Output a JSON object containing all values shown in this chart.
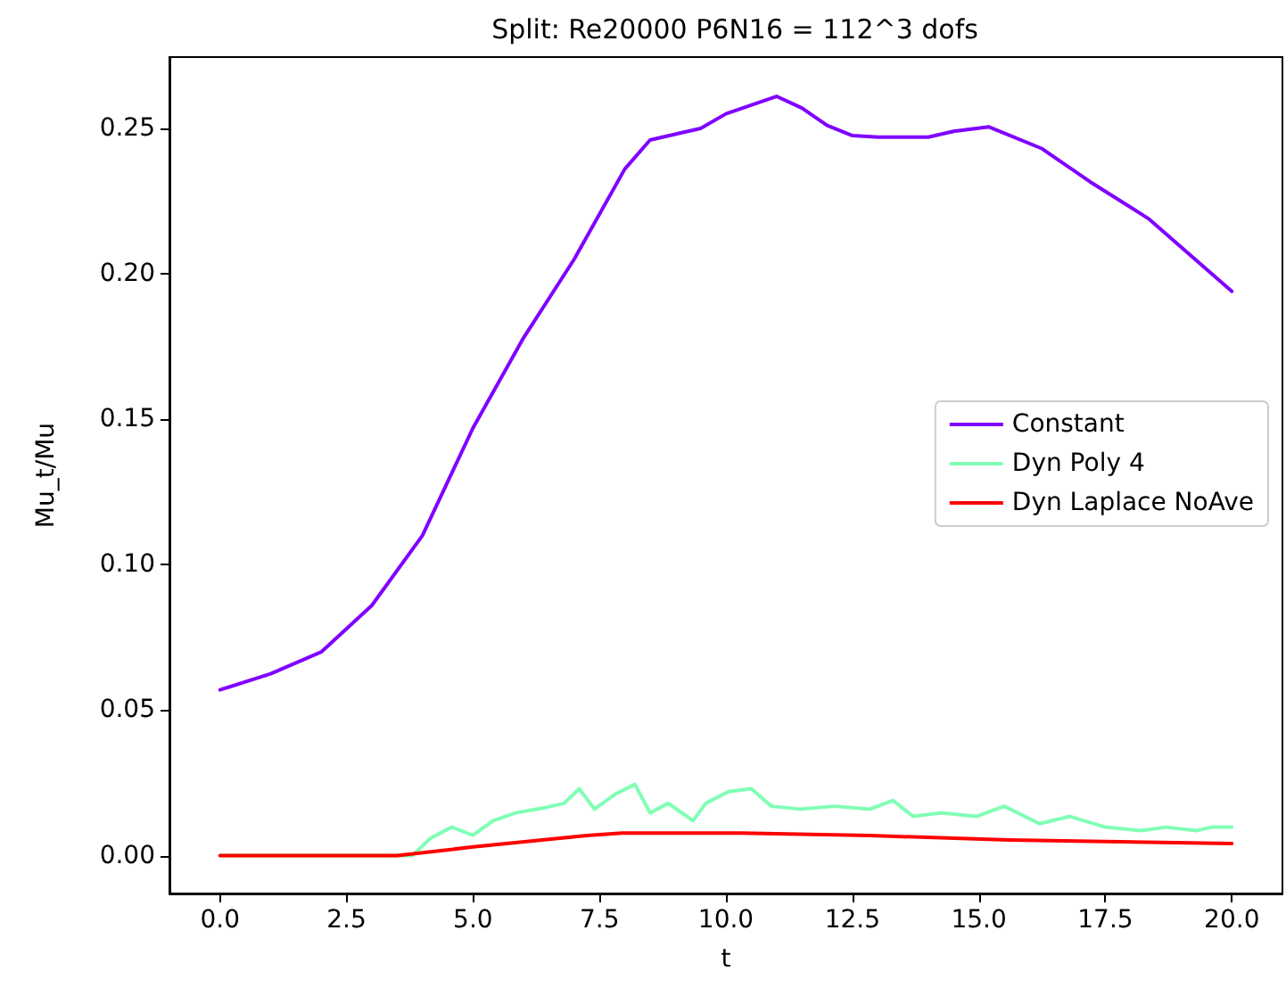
{
  "chart_data": {
    "type": "line",
    "title": "Split: Re20000 P6N16 = 112^3 dofs",
    "xlabel": "t",
    "ylabel": "Mu_t/Mu",
    "xlim": [
      -1,
      21
    ],
    "xticks": [
      {
        "value": 0,
        "label": "0.0"
      },
      {
        "value": 2.5,
        "label": "2.5"
      },
      {
        "value": 5,
        "label": "5.0"
      },
      {
        "value": 7.5,
        "label": "7.5"
      },
      {
        "value": 10,
        "label": "10.0"
      },
      {
        "value": 12.5,
        "label": "12.5"
      },
      {
        "value": 15,
        "label": "15.0"
      },
      {
        "value": 17.5,
        "label": "17.5"
      },
      {
        "value": 20,
        "label": "20.0"
      }
    ],
    "ylim": [
      -0.013,
      0.2745
    ],
    "yticks": [
      {
        "value": 0,
        "label": "0.00"
      },
      {
        "value": 0.05,
        "label": "0.05"
      },
      {
        "value": 0.1,
        "label": "0.10"
      },
      {
        "value": 0.15,
        "label": "0.15"
      },
      {
        "value": 0.2,
        "label": "0.20"
      },
      {
        "value": 0.25,
        "label": "0.25"
      }
    ],
    "grid": false,
    "legend": "right",
    "marker": "none",
    "line_style": "solid",
    "series": [
      {
        "name": "Constant",
        "color": "#8000ff",
        "x": [
          0,
          1,
          2,
          3,
          4,
          5,
          6,
          7,
          8,
          8.5,
          9,
          9.5,
          10,
          10.5,
          11,
          11.5,
          12,
          12.5,
          13,
          14,
          14.5,
          15.2,
          16.25,
          17.2,
          18.35,
          20
        ],
        "values": [
          0.057,
          0.0625,
          0.07,
          0.086,
          0.11,
          0.147,
          0.178,
          0.205,
          0.236,
          0.246,
          0.248,
          0.25,
          0.255,
          0.258,
          0.261,
          0.257,
          0.251,
          0.2475,
          0.247,
          0.247,
          0.249,
          0.2505,
          0.243,
          0.2316,
          0.219,
          0.194
        ]
      },
      {
        "name": "Dyn Poly 4",
        "color": "#80ffb4",
        "x": [
          0,
          3.8,
          4.16,
          4.58,
          5,
          5.4,
          5.84,
          6.4,
          6.8,
          7.1,
          7.4,
          7.8,
          8.2,
          8.5,
          8.86,
          9.35,
          9.6,
          10.05,
          10.5,
          10.9,
          11.45,
          12.15,
          12.85,
          13.3,
          13.7,
          14.25,
          14.95,
          15.5,
          16.2,
          16.8,
          17.5,
          18.2,
          18.7,
          19.3,
          19.6,
          20
        ],
        "values": [
          0,
          0,
          0.006,
          0.0098,
          0.007,
          0.012,
          0.0147,
          0.0164,
          0.018,
          0.023,
          0.016,
          0.021,
          0.0245,
          0.0147,
          0.018,
          0.012,
          0.018,
          0.022,
          0.023,
          0.017,
          0.016,
          0.017,
          0.016,
          0.019,
          0.0135,
          0.0147,
          0.0135,
          0.017,
          0.011,
          0.0135,
          0.0098,
          0.0086,
          0.0098,
          0.0086,
          0.0098,
          0.0098
        ]
      },
      {
        "name": "Dyn Laplace NoAve",
        "color": "#ff0000",
        "x": [
          0,
          3.5,
          5,
          7.25,
          7.95,
          10.3,
          12.85,
          15.6,
          20
        ],
        "values": [
          0,
          0,
          0.003,
          0.0069,
          0.0078,
          0.0078,
          0.0069,
          0.0054,
          0.0042
        ]
      }
    ]
  }
}
